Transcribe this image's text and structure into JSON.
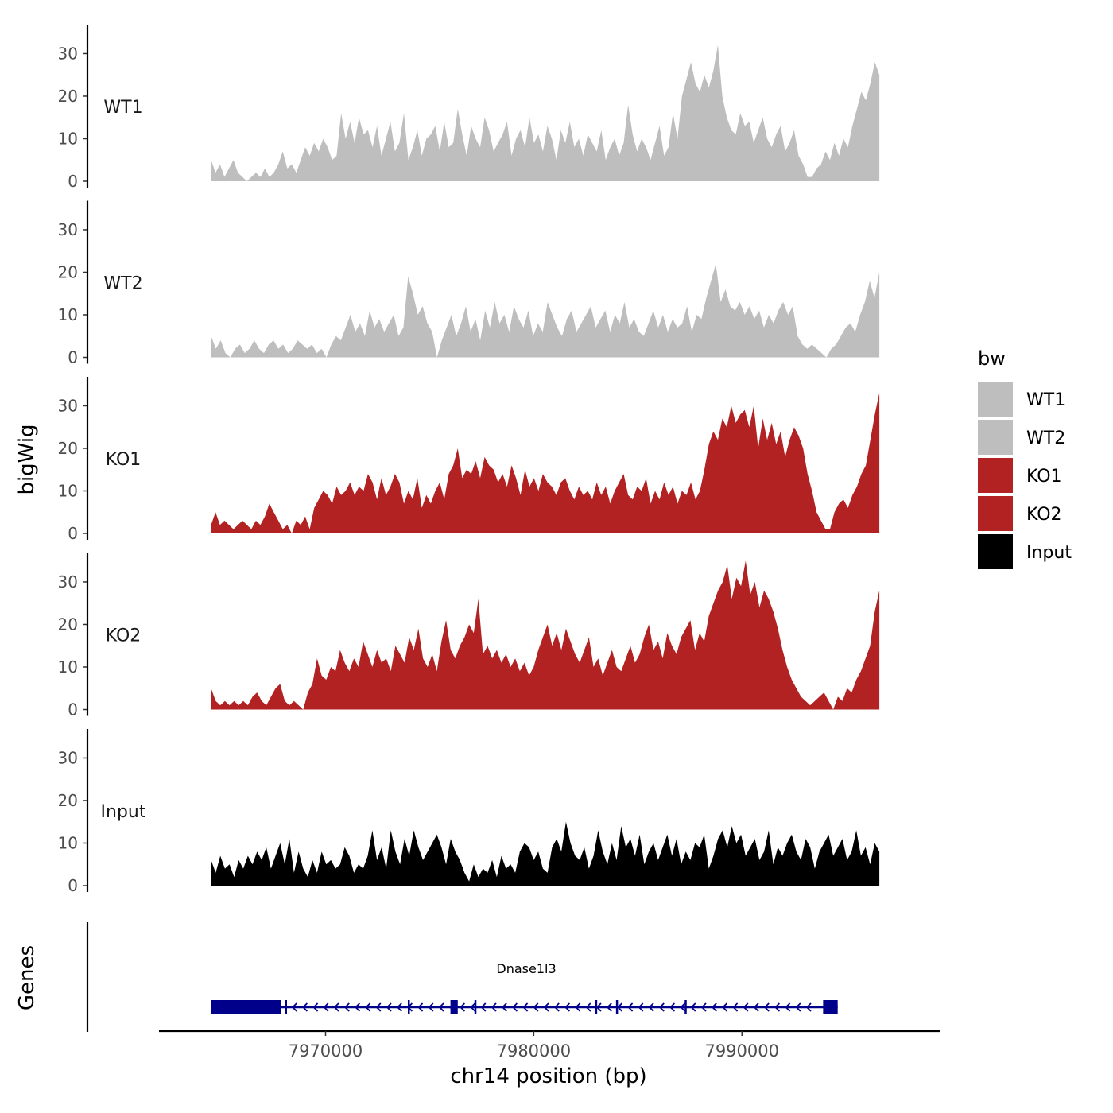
{
  "chart_data": {
    "type": "area",
    "ylabel": "bigWig",
    "genes_label": "Genes",
    "xlabel": "chr14 position (bp)",
    "x_ticks": [
      7970000,
      7980000,
      7990000
    ],
    "x_tick_labels": [
      "7970000",
      "7980000",
      "7990000"
    ],
    "xlim": [
      7962000,
      7999500
    ],
    "data_range": [
      7964500,
      7996600
    ],
    "ylim": [
      0,
      37
    ],
    "y_ticks": [
      0,
      10,
      20,
      30
    ],
    "y_tick_labels": [
      "0",
      "10",
      "20",
      "30"
    ],
    "legend": {
      "title": "bw",
      "entries": [
        {
          "label": "WT1",
          "color": "#bebebe"
        },
        {
          "label": "WT2",
          "color": "#bebebe"
        },
        {
          "label": "KO1",
          "color": "#b22222"
        },
        {
          "label": "KO2",
          "color": "#b22222"
        },
        {
          "label": "Input",
          "color": "#000000"
        }
      ]
    },
    "series": [
      {
        "name": "WT1",
        "color": "#bebebe",
        "values": [
          5,
          2,
          4,
          1,
          3,
          5,
          2,
          1,
          0,
          1,
          2,
          1,
          3,
          1,
          2,
          4,
          7,
          3,
          4,
          2,
          5,
          8,
          6,
          9,
          7,
          10,
          8,
          5,
          6,
          16,
          10,
          14,
          9,
          15,
          11,
          12,
          8,
          13,
          6,
          10,
          14,
          7,
          9,
          16,
          5,
          8,
          12,
          6,
          10,
          11,
          13,
          7,
          14,
          8,
          9,
          17,
          11,
          6,
          13,
          10,
          8,
          15,
          12,
          7,
          9,
          11,
          14,
          6,
          10,
          12,
          8,
          15,
          9,
          11,
          7,
          13,
          10,
          5,
          12,
          9,
          14,
          8,
          10,
          6,
          11,
          9,
          7,
          12,
          5,
          8,
          10,
          6,
          9,
          18,
          11,
          7,
          10,
          8,
          5,
          9,
          13,
          6,
          8,
          16,
          10,
          20,
          24,
          28,
          23,
          21,
          25,
          22,
          26,
          32,
          20,
          15,
          12,
          11,
          16,
          13,
          14,
          9,
          12,
          15,
          10,
          8,
          11,
          13,
          7,
          9,
          12,
          6,
          4,
          1,
          1,
          3,
          4,
          7,
          5,
          9,
          6,
          10,
          8,
          13,
          17,
          21,
          19,
          23,
          28,
          25
        ]
      },
      {
        "name": "WT2",
        "color": "#bebebe",
        "values": [
          5,
          2,
          4,
          1,
          0,
          2,
          3,
          1,
          2,
          4,
          2,
          1,
          3,
          4,
          2,
          3,
          1,
          2,
          4,
          3,
          2,
          3,
          1,
          2,
          0,
          3,
          5,
          4,
          7,
          10,
          6,
          8,
          5,
          11,
          7,
          9,
          6,
          8,
          10,
          5,
          7,
          19,
          15,
          10,
          12,
          8,
          6,
          0,
          4,
          7,
          10,
          5,
          8,
          12,
          6,
          9,
          4,
          11,
          7,
          13,
          8,
          10,
          6,
          12,
          9,
          7,
          11,
          5,
          8,
          6,
          13,
          10,
          7,
          5,
          9,
          11,
          6,
          8,
          10,
          12,
          7,
          9,
          11,
          6,
          10,
          8,
          13,
          7,
          9,
          6,
          5,
          8,
          11,
          7,
          10,
          6,
          9,
          7,
          8,
          12,
          6,
          10,
          9,
          14,
          18,
          22,
          13,
          16,
          12,
          11,
          13,
          10,
          12,
          9,
          11,
          7,
          10,
          8,
          11,
          13,
          10,
          12,
          5,
          3,
          2,
          3,
          2,
          1,
          0,
          2,
          3,
          5,
          7,
          8,
          6,
          10,
          13,
          18,
          14,
          20
        ]
      },
      {
        "name": "KO1",
        "color": "#b22222",
        "values": [
          2,
          5,
          2,
          3,
          2,
          1,
          2,
          3,
          2,
          1,
          3,
          2,
          4,
          7,
          5,
          3,
          1,
          2,
          0,
          3,
          2,
          4,
          1,
          6,
          8,
          10,
          9,
          7,
          11,
          9,
          10,
          12,
          9,
          11,
          10,
          14,
          12,
          8,
          13,
          9,
          11,
          14,
          12,
          7,
          10,
          8,
          13,
          6,
          9,
          7,
          10,
          12,
          8,
          14,
          16,
          20,
          13,
          15,
          14,
          17,
          13,
          18,
          16,
          15,
          12,
          14,
          11,
          16,
          13,
          9,
          15,
          11,
          13,
          10,
          14,
          12,
          11,
          9,
          12,
          13,
          10,
          8,
          11,
          9,
          10,
          8,
          12,
          9,
          11,
          7,
          10,
          12,
          14,
          9,
          8,
          11,
          10,
          13,
          7,
          10,
          8,
          12,
          9,
          11,
          7,
          10,
          9,
          12,
          8,
          10,
          15,
          21,
          24,
          22,
          27,
          25,
          30,
          26,
          28,
          29,
          25,
          30,
          20,
          27,
          22,
          26,
          21,
          24,
          18,
          22,
          25,
          23,
          20,
          14,
          10,
          5,
          3,
          1,
          1,
          5,
          7,
          8,
          6,
          9,
          11,
          14,
          16,
          22,
          28,
          33
        ]
      },
      {
        "name": "KO2",
        "color": "#b22222",
        "values": [
          5,
          2,
          1,
          2,
          1,
          2,
          1,
          2,
          1,
          3,
          4,
          2,
          1,
          3,
          5,
          6,
          2,
          1,
          2,
          1,
          0,
          4,
          6,
          12,
          8,
          7,
          10,
          9,
          14,
          11,
          9,
          12,
          10,
          16,
          13,
          10,
          14,
          11,
          12,
          9,
          15,
          13,
          11,
          17,
          14,
          19,
          12,
          10,
          13,
          9,
          16,
          21,
          14,
          12,
          15,
          17,
          20,
          18,
          26,
          13,
          15,
          12,
          14,
          11,
          13,
          10,
          12,
          9,
          11,
          8,
          10,
          14,
          17,
          20,
          15,
          18,
          14,
          19,
          16,
          13,
          11,
          14,
          17,
          10,
          12,
          8,
          11,
          14,
          10,
          9,
          12,
          15,
          11,
          13,
          17,
          20,
          14,
          16,
          12,
          18,
          15,
          13,
          17,
          19,
          21,
          14,
          18,
          16,
          22,
          25,
          28,
          30,
          34,
          26,
          31,
          29,
          35,
          27,
          30,
          24,
          28,
          26,
          23,
          19,
          14,
          10,
          7,
          5,
          3,
          2,
          1,
          2,
          3,
          4,
          2,
          0,
          3,
          2,
          5,
          4,
          7,
          9,
          12,
          15,
          23,
          28
        ]
      },
      {
        "name": "Input",
        "color": "#000000",
        "values": [
          6,
          3,
          7,
          4,
          5,
          2,
          6,
          4,
          7,
          5,
          8,
          6,
          9,
          4,
          7,
          10,
          5,
          11,
          3,
          8,
          4,
          2,
          6,
          3,
          8,
          5,
          6,
          4,
          5,
          9,
          7,
          3,
          5,
          4,
          7,
          13,
          6,
          9,
          4,
          13,
          8,
          5,
          11,
          7,
          13,
          9,
          6,
          8,
          10,
          12,
          9,
          5,
          11,
          8,
          6,
          3,
          1,
          5,
          2,
          4,
          3,
          6,
          2,
          7,
          4,
          5,
          3,
          8,
          10,
          9,
          6,
          8,
          4,
          3,
          9,
          11,
          8,
          15,
          10,
          7,
          6,
          9,
          4,
          7,
          13,
          8,
          5,
          10,
          6,
          14,
          9,
          11,
          7,
          12,
          5,
          8,
          10,
          6,
          9,
          12,
          7,
          11,
          5,
          8,
          6,
          10,
          9,
          12,
          4,
          7,
          11,
          13,
          9,
          14,
          10,
          12,
          7,
          9,
          11,
          6,
          8,
          13,
          5,
          9,
          7,
          10,
          12,
          8,
          6,
          11,
          9,
          4,
          8,
          10,
          12,
          7,
          9,
          11,
          6,
          8,
          13,
          7,
          9,
          5,
          10,
          8
        ]
      }
    ],
    "gene": {
      "name": "Dnase1l3",
      "strand": "-",
      "start": 7964500,
      "end": 7994600,
      "color": "#00008b",
      "exons": [
        [
          7964500,
          7967850
        ],
        [
          7976000,
          7976350
        ],
        [
          7993900,
          7994600
        ]
      ],
      "exon_ticks": [
        7968100,
        7974000,
        7977200,
        7983000,
        7984000,
        7987300
      ]
    }
  }
}
